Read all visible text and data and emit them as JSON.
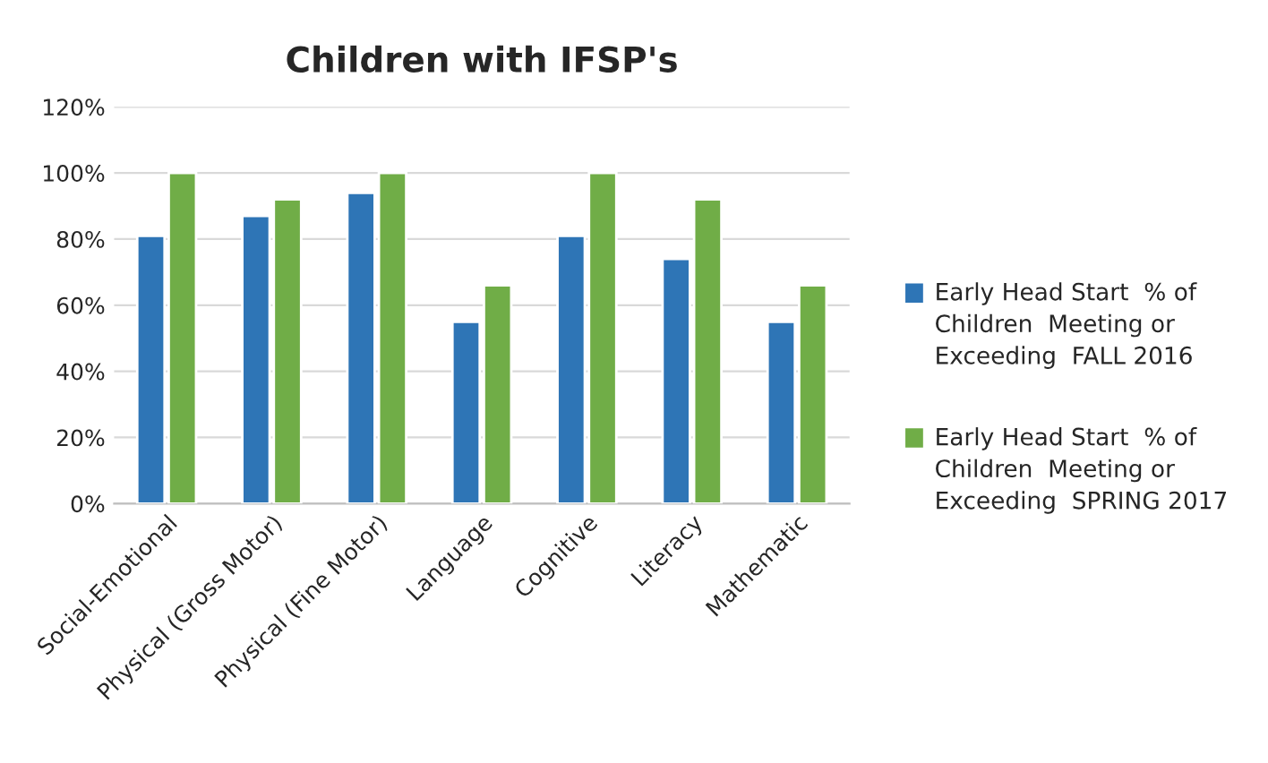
{
  "chart_data": {
    "type": "bar",
    "title": "Children with IFSP's",
    "categories": [
      "Social-Emotional",
      "Physical (Gross Motor)",
      "Physical (Fine Motor)",
      "Language",
      "Cognitive",
      "Literacy",
      "Mathematic"
    ],
    "series": [
      {
        "name": "Early Head Start  % of Children  Meeting or Exceeding  FALL 2016",
        "color": "#2e75b6",
        "values": [
          0.81,
          0.87,
          0.94,
          0.55,
          0.81,
          0.74,
          0.55
        ]
      },
      {
        "name": "Early Head Start  % of Children  Meeting or Exceeding  SPRING 2017",
        "color": "#70ad47",
        "values": [
          1.0,
          0.92,
          1.0,
          0.66,
          1.0,
          0.92,
          0.66
        ]
      }
    ],
    "ylim": [
      0,
      1.2
    ],
    "yticks": [
      {
        "value": 0,
        "label": "0%"
      },
      {
        "value": 0.2,
        "label": "20%"
      },
      {
        "value": 0.4,
        "label": "40%"
      },
      {
        "value": 0.6,
        "label": "60%"
      },
      {
        "value": 0.8,
        "label": "80%"
      },
      {
        "value": 1.0,
        "label": "100%"
      },
      {
        "value": 1.2,
        "label": "120%"
      }
    ],
    "grid": "y",
    "legend": "right"
  }
}
